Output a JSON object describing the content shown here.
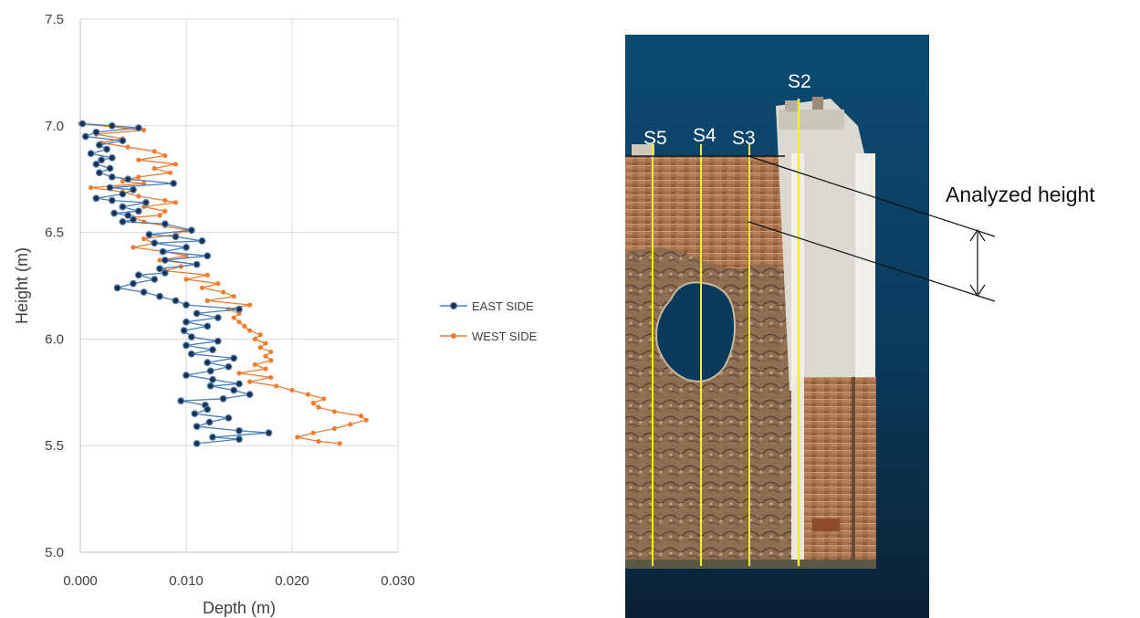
{
  "chart_data": {
    "type": "scatter",
    "xlabel": "Depth (m)",
    "ylabel": "Height (m)",
    "xlim": [
      0.0,
      0.03
    ],
    "ylim": [
      5.0,
      7.5
    ],
    "x_ticks": [
      "0.000",
      "0.010",
      "0.020",
      "0.030"
    ],
    "y_ticks": [
      "5.0",
      "5.5",
      "6.0",
      "6.5",
      "7.0",
      "7.5"
    ],
    "grid": true,
    "legend_position": "right",
    "series": [
      {
        "name": "EAST SIDE",
        "color": "#4a7ebb",
        "marker_fill": "#1f2f45",
        "points": [
          [
            0.0002,
            7.01
          ],
          [
            0.003,
            7.0
          ],
          [
            0.0055,
            6.99
          ],
          [
            0.0015,
            6.97
          ],
          [
            0.0005,
            6.95
          ],
          [
            0.004,
            6.93
          ],
          [
            0.0018,
            6.91
          ],
          [
            0.0025,
            6.89
          ],
          [
            0.001,
            6.87
          ],
          [
            0.003,
            6.85
          ],
          [
            0.002,
            6.84
          ],
          [
            0.0015,
            6.82
          ],
          [
            0.0028,
            6.8
          ],
          [
            0.0018,
            6.78
          ],
          [
            0.003,
            6.76
          ],
          [
            0.0045,
            6.75
          ],
          [
            0.0088,
            6.73
          ],
          [
            0.0028,
            6.71
          ],
          [
            0.005,
            6.7
          ],
          [
            0.004,
            6.68
          ],
          [
            0.0015,
            6.66
          ],
          [
            0.003,
            6.65
          ],
          [
            0.0062,
            6.64
          ],
          [
            0.004,
            6.62
          ],
          [
            0.0055,
            6.6
          ],
          [
            0.0032,
            6.59
          ],
          [
            0.0045,
            6.58
          ],
          [
            0.005,
            6.56
          ],
          [
            0.004,
            6.55
          ],
          [
            0.008,
            6.54
          ],
          [
            0.0105,
            6.51
          ],
          [
            0.0065,
            6.49
          ],
          [
            0.009,
            6.48
          ],
          [
            0.0115,
            6.46
          ],
          [
            0.007,
            6.45
          ],
          [
            0.01,
            6.43
          ],
          [
            0.0078,
            6.41
          ],
          [
            0.012,
            6.39
          ],
          [
            0.008,
            6.37
          ],
          [
            0.011,
            6.35
          ],
          [
            0.0075,
            6.33
          ],
          [
            0.008,
            6.31
          ],
          [
            0.0055,
            6.3
          ],
          [
            0.007,
            6.28
          ],
          [
            0.005,
            6.26
          ],
          [
            0.0035,
            6.24
          ],
          [
            0.006,
            6.22
          ],
          [
            0.0075,
            6.2
          ],
          [
            0.009,
            6.18
          ],
          [
            0.01,
            6.16
          ],
          [
            0.015,
            6.14
          ],
          [
            0.011,
            6.12
          ],
          [
            0.013,
            6.1
          ],
          [
            0.01,
            6.08
          ],
          [
            0.012,
            6.06
          ],
          [
            0.0098,
            6.04
          ],
          [
            0.0105,
            6.01
          ],
          [
            0.013,
            5.99
          ],
          [
            0.01,
            5.97
          ],
          [
            0.0125,
            5.95
          ],
          [
            0.0105,
            5.93
          ],
          [
            0.0145,
            5.91
          ],
          [
            0.012,
            5.89
          ],
          [
            0.014,
            5.87
          ],
          [
            0.0123,
            5.85
          ],
          [
            0.01,
            5.83
          ],
          [
            0.0125,
            5.81
          ],
          [
            0.015,
            5.79
          ],
          [
            0.0123,
            5.78
          ],
          [
            0.0145,
            5.76
          ],
          [
            0.016,
            5.74
          ],
          [
            0.0135,
            5.72
          ],
          [
            0.0095,
            5.71
          ],
          [
            0.0118,
            5.69
          ],
          [
            0.012,
            5.67
          ],
          [
            0.0108,
            5.65
          ],
          [
            0.014,
            5.63
          ],
          [
            0.0122,
            5.61
          ],
          [
            0.011,
            5.59
          ],
          [
            0.015,
            5.57
          ],
          [
            0.0178,
            5.56
          ],
          [
            0.0125,
            5.54
          ],
          [
            0.015,
            5.53
          ],
          [
            0.011,
            5.51
          ]
        ]
      },
      {
        "name": "WEST SIDE",
        "color": "#ed7d31",
        "marker_fill": "#ed7d31",
        "points": [
          [
            0.0,
            7.01
          ],
          [
            0.006,
            6.98
          ],
          [
            0.0015,
            6.96
          ],
          [
            0.004,
            6.94
          ],
          [
            0.002,
            6.92
          ],
          [
            0.0045,
            6.9
          ],
          [
            0.007,
            6.88
          ],
          [
            0.008,
            6.86
          ],
          [
            0.0055,
            6.84
          ],
          [
            0.009,
            6.82
          ],
          [
            0.007,
            6.8
          ],
          [
            0.0085,
            6.78
          ],
          [
            0.0055,
            6.76
          ],
          [
            0.004,
            6.74
          ],
          [
            0.006,
            6.73
          ],
          [
            0.001,
            6.71
          ],
          [
            0.004,
            6.69
          ],
          [
            0.0055,
            6.67
          ],
          [
            0.008,
            6.65
          ],
          [
            0.009,
            6.64
          ],
          [
            0.006,
            6.62
          ],
          [
            0.008,
            6.6
          ],
          [
            0.0075,
            6.58
          ],
          [
            0.005,
            6.57
          ],
          [
            0.006,
            6.55
          ],
          [
            0.008,
            6.53
          ],
          [
            0.01,
            6.51
          ],
          [
            0.009,
            6.49
          ],
          [
            0.006,
            6.47
          ],
          [
            0.007,
            6.45
          ],
          [
            0.005,
            6.43
          ],
          [
            0.008,
            6.41
          ],
          [
            0.01,
            6.39
          ],
          [
            0.0075,
            6.37
          ],
          [
            0.011,
            6.35
          ],
          [
            0.0095,
            6.34
          ],
          [
            0.008,
            6.32
          ],
          [
            0.012,
            6.3
          ],
          [
            0.01,
            6.28
          ],
          [
            0.013,
            6.26
          ],
          [
            0.0115,
            6.24
          ],
          [
            0.0135,
            6.22
          ],
          [
            0.0145,
            6.2
          ],
          [
            0.012,
            6.18
          ],
          [
            0.016,
            6.16
          ],
          [
            0.014,
            6.14
          ],
          [
            0.015,
            6.12
          ],
          [
            0.0145,
            6.1
          ],
          [
            0.015,
            6.08
          ],
          [
            0.0155,
            6.06
          ],
          [
            0.016,
            6.04
          ],
          [
            0.017,
            6.02
          ],
          [
            0.0165,
            6.0
          ],
          [
            0.0175,
            5.98
          ],
          [
            0.017,
            5.96
          ],
          [
            0.018,
            5.94
          ],
          [
            0.0175,
            5.92
          ],
          [
            0.018,
            5.9
          ],
          [
            0.0165,
            5.88
          ],
          [
            0.0175,
            5.86
          ],
          [
            0.015,
            5.84
          ],
          [
            0.018,
            5.82
          ],
          [
            0.016,
            5.8
          ],
          [
            0.0185,
            5.78
          ],
          [
            0.02,
            5.76
          ],
          [
            0.0215,
            5.74
          ],
          [
            0.023,
            5.72
          ],
          [
            0.022,
            5.7
          ],
          [
            0.0225,
            5.68
          ],
          [
            0.024,
            5.66
          ],
          [
            0.0265,
            5.64
          ],
          [
            0.027,
            5.62
          ],
          [
            0.0255,
            5.6
          ],
          [
            0.024,
            5.58
          ],
          [
            0.022,
            5.56
          ],
          [
            0.0205,
            5.54
          ],
          [
            0.0225,
            5.52
          ],
          [
            0.0245,
            5.51
          ]
        ]
      }
    ]
  },
  "photo": {
    "section_labels": [
      "S2",
      "S3",
      "S4",
      "S5"
    ],
    "annotation": "Analyzed height",
    "colors": {
      "sky_top": "#0c4a72",
      "sky_bottom": "#0a2233",
      "brick": "#a8704a",
      "plaster": "#e2e0d8",
      "section_line": "#f2ee2a"
    }
  }
}
